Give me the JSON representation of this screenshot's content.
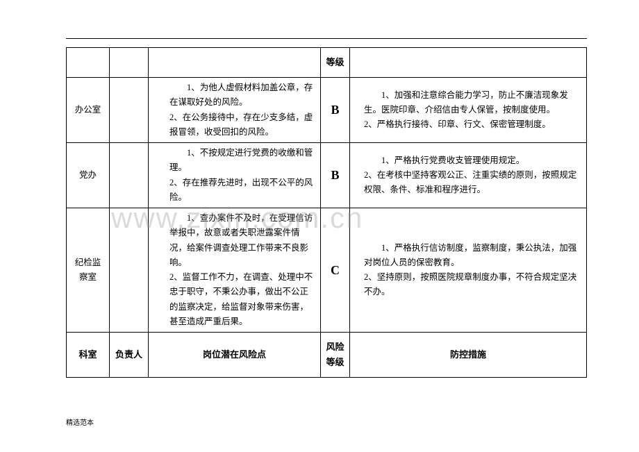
{
  "header_partial": {
    "level_label": "等级"
  },
  "rows": [
    {
      "dept": "办公室",
      "resp": "",
      "risk": "1、为他人虚假材料加盖公章，存在谋取好处的风险。\n2、在公务接待中，存在少支多结，虚报冒领，收受回扣的风险。",
      "level": "B",
      "action": "1、加强和注意综合能力学习，防止不廉洁现象发生。医院印章、介绍信由专人保管，按制度使用。\n2、严格执行接待、印章、行文、保密管理制度。"
    },
    {
      "dept": "党办",
      "resp": "",
      "risk": "1、不按规定进行党费的收缴和管理。\n2、存在推荐先进时，出现不公平的风险。",
      "level": "B",
      "action": "1、严格执行党费收支管理使用规定。\n2、在考核中坚持客观公正、注重实绩的原则，按照规定权限、条件、标准和程序进行。"
    },
    {
      "dept": "纪检监察室",
      "resp": "",
      "risk": "1、查办案件不及时，在受理信访举报中，故意或者失职泄露案件情况，给案件调查处理工作带来不良影响。\n2、监督工作不力，在调查、处理中不忠于职守，不秉公办事，做出不公正的监察决定，给监督对象带来伤害，甚至造成严重后果。",
      "level": "C",
      "action": "1、严格执行信访制度，监察制度，秉公执法，加强对岗位人员的保密教育。\n2、坚持原则，按照医院规章制度办事，不符合规定坚决不办。"
    }
  ],
  "columns": {
    "dept": "科室",
    "resp": "负责人",
    "risk": "岗位潜在风险点",
    "level": "风险等级",
    "action": "防控措施"
  },
  "watermark": "www.zixin.com.cn",
  "footer": "精选范本",
  "colors": {
    "border": "#000000",
    "text": "#000000",
    "background": "#ffffff",
    "watermark": "rgba(150,150,150,0.35)"
  }
}
